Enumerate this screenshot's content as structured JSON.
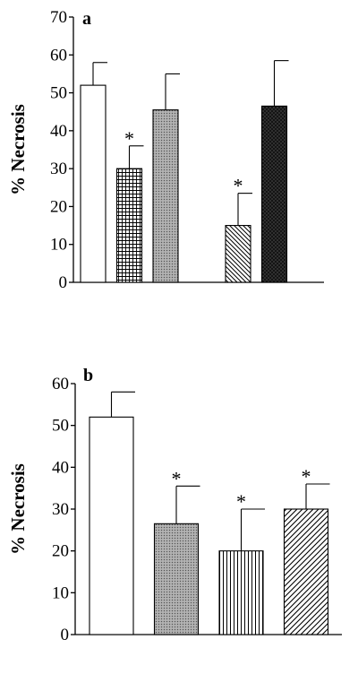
{
  "chart_data": [
    {
      "panel": "a",
      "type": "bar",
      "ylabel": "% Necrosis",
      "ylim": [
        0,
        70
      ],
      "yticks": [
        0,
        10,
        20,
        30,
        40,
        50,
        60,
        70
      ],
      "grid": false,
      "legend": "none",
      "bars": [
        {
          "value": 52,
          "error": 6,
          "significant": false,
          "pattern": "open",
          "slot": 0
        },
        {
          "value": 30,
          "error": 6,
          "significant": true,
          "pattern": "grid",
          "slot": 1
        },
        {
          "value": 45.5,
          "error": 9.5,
          "significant": false,
          "pattern": "stipple",
          "slot": 2
        },
        {
          "value": 15,
          "error": 8.5,
          "significant": true,
          "pattern": "diagonal-back",
          "slot": 4
        },
        {
          "value": 46.5,
          "error": 12,
          "significant": false,
          "pattern": "dark-crosshatch",
          "slot": 5
        }
      ]
    },
    {
      "panel": "b",
      "type": "bar",
      "ylabel": "% Necrosis",
      "ylim": [
        0,
        60
      ],
      "yticks": [
        0,
        10,
        20,
        30,
        40,
        50,
        60
      ],
      "grid": false,
      "legend": "none",
      "bars": [
        {
          "value": 52,
          "error": 6,
          "significant": false,
          "pattern": "open",
          "slot": 0
        },
        {
          "value": 26.5,
          "error": 9,
          "significant": true,
          "pattern": "stipple",
          "slot": 1
        },
        {
          "value": 20,
          "error": 10,
          "significant": true,
          "pattern": "vertical",
          "slot": 2
        },
        {
          "value": 30,
          "error": 6,
          "significant": true,
          "pattern": "diagonal-forward",
          "slot": 3
        }
      ]
    }
  ],
  "significance_marker": "*"
}
